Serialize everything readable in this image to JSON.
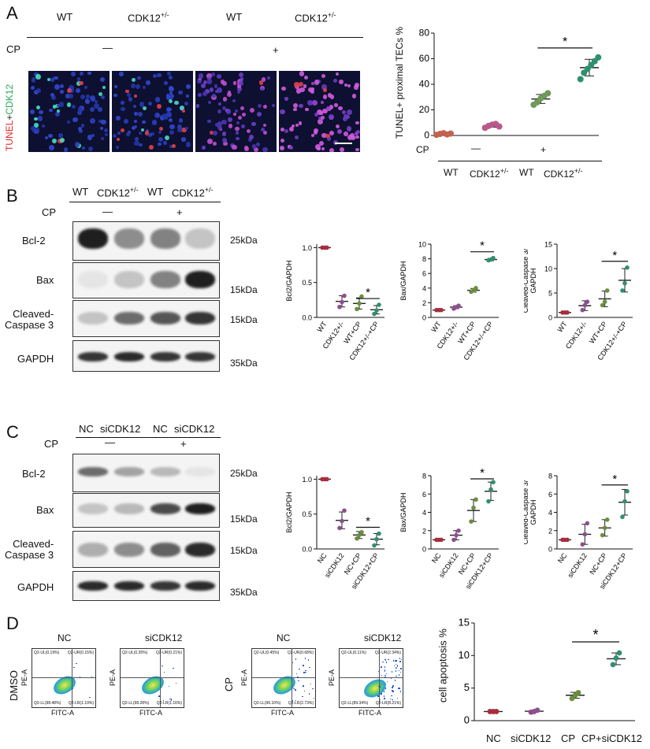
{
  "panelA": {
    "letter": "A",
    "headers": [
      "WT",
      "CDK12",
      "WT",
      "CDK12"
    ],
    "sup": "+/-",
    "cp_label": "CP",
    "cp_minus": "—",
    "cp_plus": "+",
    "stain_tunel": "TUNEL",
    "stain_plus": "+",
    "stain_cdk": "CDK12",
    "chart": {
      "ylabel": "TUNEL+ proximal TECs %",
      "yticks": [
        "0",
        "20",
        "40",
        "60",
        "80"
      ],
      "star": "*",
      "cp_label": "CP",
      "cp_minus": "—",
      "cp_plus": "+",
      "x_wt": "WT",
      "x_cdk": "CDK12",
      "x_sup": "+/-"
    }
  },
  "panelB": {
    "letter": "B",
    "headers": [
      "WT",
      "CDK12",
      "WT",
      "CDK12"
    ],
    "sup": "+/-",
    "cp_label": "CP",
    "cp_minus": "—",
    "cp_plus": "+",
    "bands": [
      "Bcl-2",
      "Bax",
      "Cleaved-\nCaspase 3",
      "GAPDH"
    ],
    "sizes": [
      "25kDa",
      "15kDa",
      "15kDa",
      "35kDa"
    ],
    "star": "*",
    "chart_labels": [
      "Bcl2/GAPDH",
      "Bax/GAPDH",
      "Cleaved-Caspase 3/ GAPDH"
    ],
    "xcats": [
      "WT",
      "CDK12+/-",
      "WT+CP",
      "CDK12+/-+CP"
    ]
  },
  "panelC": {
    "letter": "C",
    "headers": [
      "NC",
      "siCDK12",
      "NC",
      "siCDK12"
    ],
    "cp_label": "CP",
    "cp_minus": "—",
    "cp_plus": "+",
    "bands": [
      "Bcl-2",
      "Bax",
      "Cleaved-\nCaspase 3",
      "GAPDH"
    ],
    "sizes": [
      "25kDa",
      "15kDa",
      "15kDa",
      "35kDa"
    ],
    "star": "*",
    "chart_labels": [
      "Bcl2/GAPDH",
      "Bax/GAPDH",
      "Cleaved-Caspase 3/ GAPDH"
    ],
    "xcats": [
      "NC",
      "siCDK12",
      "NC+CP",
      "siCDK12+CP"
    ]
  },
  "panelD": {
    "letter": "D",
    "row_dmso": "DMSO",
    "row_cp": "CP",
    "titles": [
      "NC",
      "siCDK12",
      "NC",
      "siCDK12"
    ],
    "axis_y": "PE-A",
    "axis_x": "FITC-A",
    "quadrants": [
      [
        "Q2-UL(0.19%)",
        "Q2-UR(0.15%)",
        "Q2-LL(98.48%)",
        "Q2-LR(1.19%)"
      ],
      [
        "Q2-UL(0.35%)",
        "Q2-UR(0.21%)",
        "Q2-LL(98.28%)",
        "Q2-LR(1.16%)"
      ],
      [
        "Q2-UL(0.45%)",
        "Q2-UR(0.68%)",
        "Q2-LL(96.10%)",
        "Q2-LR(2.73%)"
      ],
      [
        "Q2-UL(0.11%)",
        "Q2-UR(2.34%)",
        "Q2-LL(89.34%)",
        "Q2-LR(8.21%)"
      ]
    ],
    "chart": {
      "ylabel": "cell apoptosis %",
      "yticks": [
        "0",
        "5",
        "10",
        "15"
      ],
      "xcats": [
        "NC",
        "siCDK12",
        "CP",
        "CP+siCDK12"
      ],
      "star": "*"
    }
  },
  "chart_data": [
    {
      "type": "scatter",
      "id": "A",
      "ylabel": "TUNEL+ proximal TECs %",
      "ylim": [
        0,
        80
      ],
      "yticks": [
        0,
        20,
        40,
        60,
        80
      ],
      "categories": [
        "WT",
        "CDK12+/-",
        "WT+CP",
        "CDK12+/-+CP"
      ],
      "colors": [
        "#c0624f",
        "#b8588a",
        "#6f9a57",
        "#2f8f6e"
      ],
      "points": [
        [
          0.5,
          1.2,
          1.8,
          0.8,
          1.5
        ],
        [
          6,
          7.5,
          8.5,
          9,
          7
        ],
        [
          24,
          26,
          29,
          31,
          33
        ],
        [
          44,
          49,
          52,
          55,
          58,
          61
        ]
      ],
      "means": [
        1.2,
        7.6,
        28.5,
        53
      ],
      "sds": [
        0.6,
        1.2,
        3.5,
        6.5
      ],
      "sig": [
        2,
        3
      ]
    },
    {
      "type": "scatter",
      "id": "B1",
      "ylabel": "Bcl2/GAPDH",
      "ylim": [
        0,
        1.05
      ],
      "yticks": [
        0.0,
        0.5,
        1.0
      ],
      "categories": [
        "WT",
        "CDK12+/-",
        "WT+CP",
        "CDK12+/-+CP"
      ],
      "colors": [
        "#a72d3d",
        "#8d4f8e",
        "#6a8f3c",
        "#2f8f6e"
      ],
      "points": [
        [
          1,
          1,
          1
        ],
        [
          0.15,
          0.22,
          0.31
        ],
        [
          0.12,
          0.2,
          0.3
        ],
        [
          0.05,
          0.1,
          0.18
        ]
      ],
      "means": [
        1,
        0.23,
        0.2,
        0.11
      ],
      "sds": [
        0,
        0.08,
        0.08,
        0.06
      ],
      "sig": [
        2,
        3
      ]
    },
    {
      "type": "scatter",
      "id": "B2",
      "ylabel": "Bax/GAPDH",
      "ylim": [
        0,
        10
      ],
      "yticks": [
        0,
        2,
        4,
        6,
        8,
        10
      ],
      "categories": [
        "WT",
        "CDK12+/-",
        "WT+CP",
        "CDK12+/-+CP"
      ],
      "colors": [
        "#a72d3d",
        "#8d4f8e",
        "#6a8f3c",
        "#2f8f6e"
      ],
      "points": [
        [
          1,
          1,
          1
        ],
        [
          1.2,
          1.4,
          1.6
        ],
        [
          3.5,
          3.7,
          4.0
        ],
        [
          7.8,
          7.9,
          8.1
        ]
      ],
      "means": [
        1,
        1.4,
        3.7,
        7.9
      ],
      "sds": [
        0,
        0.2,
        0.25,
        0.15
      ],
      "sig": [
        2,
        3
      ]
    },
    {
      "type": "scatter",
      "id": "B3",
      "ylabel": "Cleaved-Caspase 3/ GAPDH",
      "ylim": [
        0,
        15
      ],
      "yticks": [
        0,
        5,
        10,
        15
      ],
      "categories": [
        "WT",
        "CDK12+/-",
        "WT+CP",
        "CDK12+/-+CP"
      ],
      "colors": [
        "#a72d3d",
        "#8d4f8e",
        "#6a8f3c",
        "#2f8f6e"
      ],
      "points": [
        [
          1,
          1,
          1
        ],
        [
          1.5,
          2.5,
          3.2
        ],
        [
          2.5,
          3.2,
          5.5
        ],
        [
          5.5,
          7.0,
          10.2
        ]
      ],
      "means": [
        1,
        2.4,
        3.8,
        7.6
      ],
      "sds": [
        0,
        1.0,
        1.6,
        2.4
      ],
      "sig": [
        2,
        3
      ]
    },
    {
      "type": "scatter",
      "id": "C1",
      "ylabel": "Bcl2/GAPDH",
      "ylim": [
        0,
        1.05
      ],
      "yticks": [
        0.0,
        0.5,
        1.0
      ],
      "categories": [
        "NC",
        "siCDK12",
        "NC+CP",
        "siCDK12+CP"
      ],
      "colors": [
        "#a72d3d",
        "#8d4f8e",
        "#6a8f3c",
        "#2f8f6e"
      ],
      "points": [
        [
          1,
          1,
          1
        ],
        [
          0.3,
          0.4,
          0.55
        ],
        [
          0.15,
          0.2,
          0.24
        ],
        [
          0.05,
          0.14,
          0.22
        ]
      ],
      "means": [
        1,
        0.41,
        0.2,
        0.14
      ],
      "sds": [
        0,
        0.12,
        0.05,
        0.08
      ],
      "sig": [
        2,
        3
      ]
    },
    {
      "type": "scatter",
      "id": "C2",
      "ylabel": "Bax/GAPDH",
      "ylim": [
        0,
        8
      ],
      "yticks": [
        0,
        2,
        4,
        6,
        8
      ],
      "categories": [
        "NC",
        "siCDK12",
        "NC+CP",
        "siCDK12+CP"
      ],
      "colors": [
        "#a72d3d",
        "#8d4f8e",
        "#6a8f3c",
        "#2f8f6e"
      ],
      "points": [
        [
          1,
          1,
          1
        ],
        [
          1.0,
          1.5,
          2.0
        ],
        [
          3.0,
          4.5,
          5.4
        ],
        [
          5.2,
          6.5,
          7.3
        ]
      ],
      "means": [
        1,
        1.5,
        4.2,
        6.3
      ],
      "sds": [
        0,
        0.5,
        1.2,
        1.0
      ],
      "sig": [
        2,
        3
      ]
    },
    {
      "type": "scatter",
      "id": "C3",
      "ylabel": "Cleaved-Caspase 3/ GAPDH",
      "ylim": [
        0,
        8
      ],
      "yticks": [
        0,
        2,
        4,
        6,
        8
      ],
      "categories": [
        "NC",
        "siCDK12",
        "NC+CP",
        "siCDK12+CP"
      ],
      "colors": [
        "#a72d3d",
        "#8d4f8e",
        "#6a8f3c",
        "#2f8f6e"
      ],
      "points": [
        [
          1,
          1,
          1
        ],
        [
          0.5,
          1.6,
          2.8
        ],
        [
          1.5,
          2.3,
          3.2
        ],
        [
          3.5,
          5.2,
          6.3
        ]
      ],
      "means": [
        1,
        1.6,
        2.3,
        5.1
      ],
      "sds": [
        0,
        1.1,
        0.9,
        1.4
      ],
      "sig": [
        2,
        3
      ]
    },
    {
      "type": "scatter",
      "id": "D",
      "ylabel": "cell apoptosis %",
      "ylim": [
        0,
        15
      ],
      "yticks": [
        0,
        5,
        10,
        15
      ],
      "categories": [
        "NC",
        "siCDK12",
        "CP",
        "CP+siCDK12"
      ],
      "colors": [
        "#a72d3d",
        "#8d4f8e",
        "#6a8f3c",
        "#2f8f6e"
      ],
      "points": [
        [
          1.4,
          1.4,
          1.4
        ],
        [
          1.3,
          1.4,
          1.6
        ],
        [
          3.4,
          3.9,
          4.3
        ],
        [
          8.6,
          9.6,
          10.4
        ]
      ],
      "means": [
        1.4,
        1.45,
        3.9,
        9.5
      ],
      "sds": [
        0.05,
        0.15,
        0.45,
        0.9
      ],
      "sig": [
        2,
        3
      ]
    }
  ]
}
